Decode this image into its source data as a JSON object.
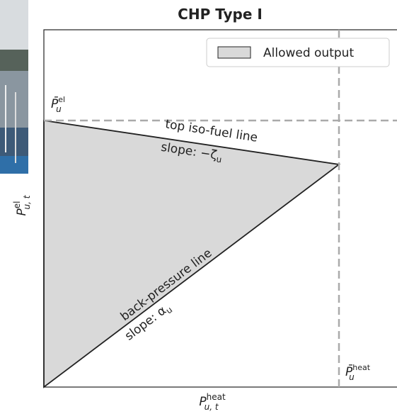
{
  "title": "CHP Type I",
  "legend": {
    "label": "Allowed output"
  },
  "y_axis_label": {
    "base": "P",
    "sup": "el",
    "sub": "u, t"
  },
  "x_axis_label": {
    "base": "P",
    "sup": "heat",
    "sub": "u, t"
  },
  "annotations": {
    "el_max": {
      "base": "P̄",
      "sup": "el",
      "sub": "u"
    },
    "heat_max": {
      "base": "P̄",
      "sup": "heat",
      "sub": "u"
    },
    "top_line": "top iso-fuel line",
    "top_slope": "slope: −ζ",
    "top_slope_sub": "u",
    "bp_line": "back-pressure line",
    "bp_slope": "slope: α",
    "bp_slope_sub": "u"
  }
}
